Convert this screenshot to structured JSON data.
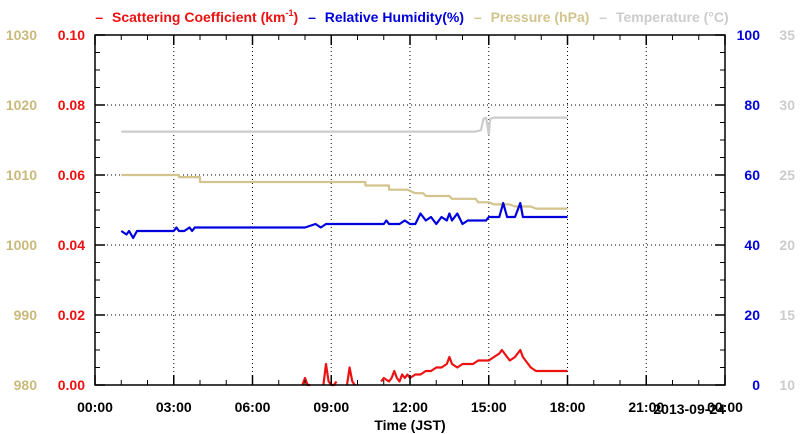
{
  "chart_data": {
    "type": "line",
    "date_label": "2013-09-24",
    "xlabel": "Time (JST)",
    "x_ticks": [
      "00:00",
      "03:00",
      "06:00",
      "09:00",
      "12:00",
      "15:00",
      "18:00",
      "21:00",
      "00:00"
    ],
    "x_range_hours": [
      0,
      24
    ],
    "grid": true,
    "legend_position": "top",
    "legend": [
      {
        "key": "scattering",
        "dash": "–",
        "text": "Scattering Coefficient (km",
        "sup": "-1",
        "tail": ")",
        "color": "#ee1111"
      },
      {
        "key": "humidity",
        "dash": "–",
        "text": "Relative Humidity(%)",
        "color": "#0000dd"
      },
      {
        "key": "pressure",
        "dash": "–",
        "text": "Pressure (hPa)",
        "color": "#d2c48c"
      },
      {
        "key": "temperature",
        "dash": "–",
        "text": "Temperature (°C)",
        "color": "#cccccc"
      }
    ],
    "axes": {
      "pressure": {
        "range": [
          980,
          1030
        ],
        "ticks": [
          "980",
          "990",
          "1000",
          "1010",
          "1020",
          "1030"
        ],
        "color": "#c9b97a"
      },
      "scattering": {
        "range": [
          0,
          0.1
        ],
        "ticks": [
          "0.00",
          "0.02",
          "0.04",
          "0.06",
          "0.08",
          "0.10"
        ],
        "color": "#ee1111"
      },
      "humidity": {
        "range": [
          0,
          100
        ],
        "ticks": [
          "0",
          "20",
          "40",
          "60",
          "80",
          "100"
        ],
        "color": "#0000dd"
      },
      "temperature": {
        "range": [
          10,
          35
        ],
        "ticks": [
          "10",
          "15",
          "20",
          "25",
          "30",
          "35"
        ],
        "color": "#cccccc"
      }
    },
    "series": [
      {
        "name": "Scattering Coefficient (km-1)",
        "axis": "scattering",
        "color": "#ee1111",
        "segments": [
          {
            "x": [
              7.9,
              8.0,
              8.1,
              8.2
            ],
            "y": [
              0.0,
              0.002,
              0.0,
              0.0
            ]
          },
          {
            "x": [
              8.7,
              8.8,
              8.9,
              9.0,
              9.1,
              9.2
            ],
            "y": [
              0.0,
              0.006,
              0.001,
              0.0,
              0.0,
              0.001
            ]
          },
          {
            "x": [
              9.6,
              9.7,
              9.8,
              9.9
            ],
            "y": [
              0.0,
              0.005,
              0.001,
              0.0
            ]
          },
          {
            "x": [
              10.9,
              11.0,
              11.2,
              11.3,
              11.4,
              11.5,
              11.6,
              11.7,
              11.8,
              11.9,
              12.0,
              12.2,
              12.4,
              12.6,
              12.8,
              13.0,
              13.2,
              13.4,
              13.5,
              13.6,
              13.8,
              14.0,
              14.2,
              14.4,
              14.6,
              14.8,
              15.0,
              15.2,
              15.4,
              15.5,
              15.6,
              15.7,
              15.8,
              16.0,
              16.1,
              16.2,
              16.3,
              16.4,
              16.6,
              16.8,
              17.0,
              17.2,
              17.4,
              17.6,
              17.8,
              18.0
            ],
            "y": [
              0.001,
              0.002,
              0.001,
              0.002,
              0.004,
              0.002,
              0.001,
              0.003,
              0.002,
              0.003,
              0.002,
              0.003,
              0.003,
              0.004,
              0.004,
              0.005,
              0.005,
              0.006,
              0.008,
              0.006,
              0.005,
              0.006,
              0.006,
              0.006,
              0.007,
              0.007,
              0.007,
              0.008,
              0.009,
              0.01,
              0.009,
              0.008,
              0.007,
              0.008,
              0.009,
              0.01,
              0.008,
              0.007,
              0.005,
              0.004,
              0.004,
              0.004,
              0.004,
              0.004,
              0.004,
              0.004
            ]
          }
        ]
      },
      {
        "name": "Relative Humidity(%)",
        "axis": "humidity",
        "color": "#0000dd",
        "segments": [
          {
            "x": [
              1.0,
              1.2,
              1.3,
              1.45,
              1.6,
              1.8,
              2.0,
              2.4,
              2.7,
              3.0,
              3.1,
              3.2,
              3.4,
              3.6,
              3.7,
              3.8,
              4.0,
              5.0,
              6.0,
              7.0,
              8.0,
              8.4,
              8.6,
              8.8,
              9.2,
              10.0,
              10.6,
              11.0,
              11.1,
              11.2,
              11.4,
              11.6,
              11.8,
              12.0,
              12.2,
              12.4,
              12.6,
              12.8,
              13.0,
              13.2,
              13.4,
              13.5,
              13.6,
              13.8,
              14.0,
              14.2,
              14.6,
              14.9,
              15.0,
              15.2,
              15.4,
              15.55,
              15.7,
              15.8,
              16.0,
              16.2,
              16.3,
              16.4,
              16.6,
              16.8,
              17.0,
              17.5,
              18.0
            ],
            "y": [
              44,
              43,
              44,
              42,
              44,
              44,
              44,
              44,
              44,
              44,
              45,
              44,
              44,
              45,
              44,
              45,
              45,
              45,
              45,
              45,
              45,
              46,
              45,
              46,
              46,
              46,
              46,
              46,
              47,
              46,
              46,
              46,
              47,
              46,
              46,
              49,
              47,
              48,
              46,
              48,
              47,
              49,
              47,
              49,
              46,
              47,
              47,
              47,
              48,
              48,
              48,
              52,
              48,
              48,
              48,
              52,
              48,
              48,
              48,
              48,
              48,
              48,
              48
            ]
          }
        ]
      },
      {
        "name": "Pressure (hPa)",
        "axis": "pressure",
        "color": "#d2c48c",
        "segments": [
          {
            "x": [
              1.0,
              3.2,
              3.2,
              4.0,
              4.0,
              6.0,
              8.0,
              8.7,
              9.0,
              10.3,
              10.3,
              11.2,
              11.2,
              11.9,
              12.2,
              12.5,
              12.6,
              13.5,
              13.6,
              14.5,
              14.6,
              15.0,
              15.2,
              15.8,
              16.0,
              16.6,
              16.8,
              18.0
            ],
            "y": [
              1010.0,
              1010.0,
              1009.7,
              1009.7,
              1009.0,
              1009.0,
              1009.0,
              1009.0,
              1009.0,
              1009.0,
              1008.5,
              1008.5,
              1007.9,
              1007.9,
              1007.4,
              1007.4,
              1007.0,
              1007.0,
              1006.6,
              1006.6,
              1006.1,
              1006.1,
              1005.8,
              1005.8,
              1005.5,
              1005.5,
              1005.2,
              1005.2
            ]
          }
        ]
      },
      {
        "name": "Temperature (°C)",
        "axis": "temperature",
        "color": "#cccccc",
        "segments": [
          {
            "x": [
              1.0,
              5.0,
              10.0,
              14.5,
              14.7,
              14.8,
              14.9,
              15.0,
              15.05,
              15.2,
              16.0,
              17.0,
              18.0
            ],
            "y": [
              28.1,
              28.1,
              28.1,
              28.1,
              28.2,
              29.0,
              29.1,
              27.9,
              29.0,
              29.1,
              29.1,
              29.1,
              29.1
            ]
          }
        ]
      }
    ]
  }
}
